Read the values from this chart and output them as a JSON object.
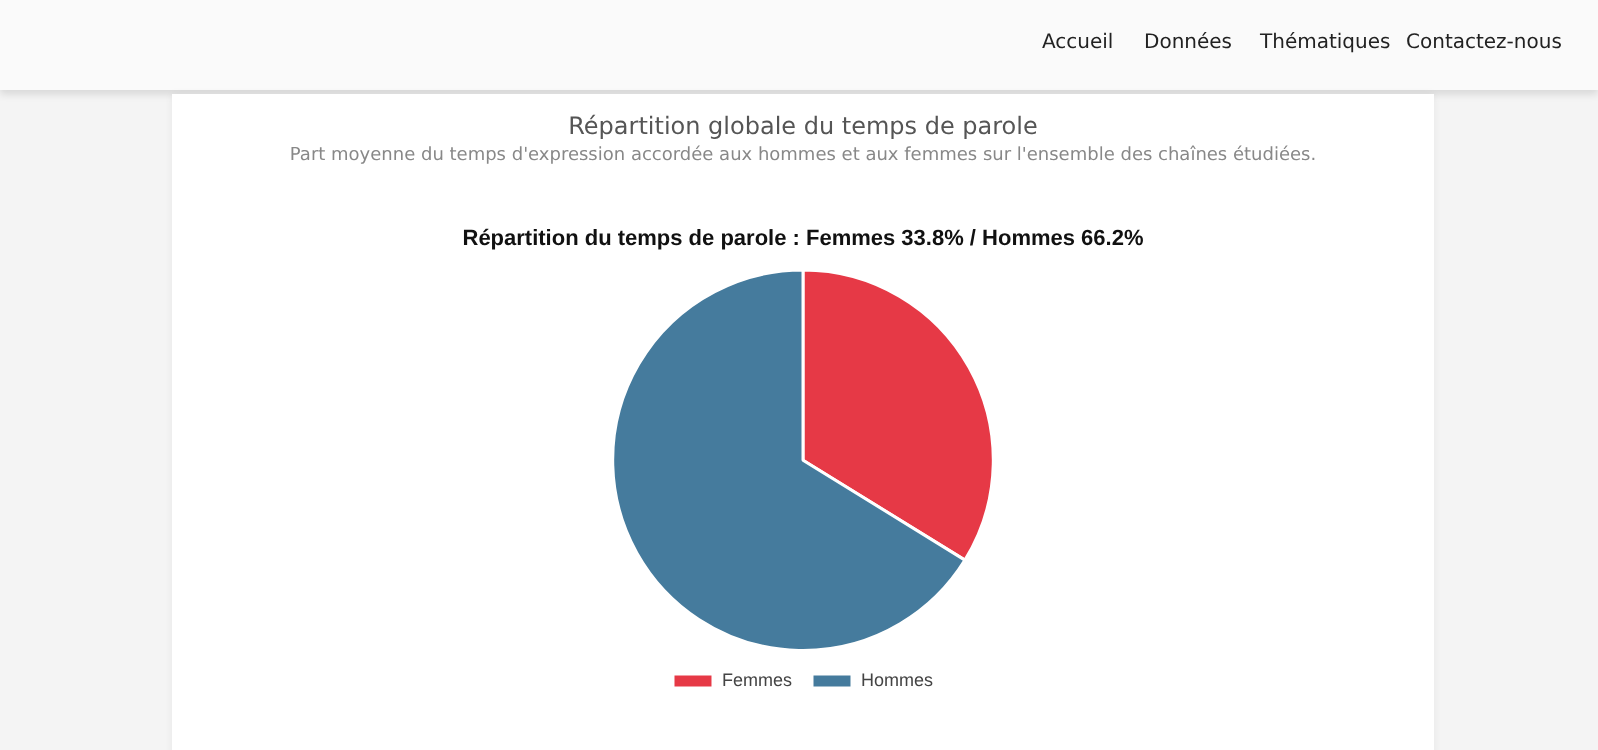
{
  "chart_data": {
    "type": "pie",
    "title": "Répartition du temps de parole : Femmes 33.8% / Hommes 66.2%",
    "categories": [
      "Femmes",
      "Hommes"
    ],
    "values": [
      33.8,
      66.2
    ],
    "colors": [
      "#e63946",
      "#457b9d"
    ],
    "legend": "bottom",
    "annotations": [
      "Accueil",
      "Données",
      "Thématiques",
      "Contactez-nous",
      "Répartition globale du temps de parole",
      "Part moyenne du temps d'expression accordée aux hommes et aux femmes sur l'ensemble des chaînes étudiées."
    ]
  }
}
